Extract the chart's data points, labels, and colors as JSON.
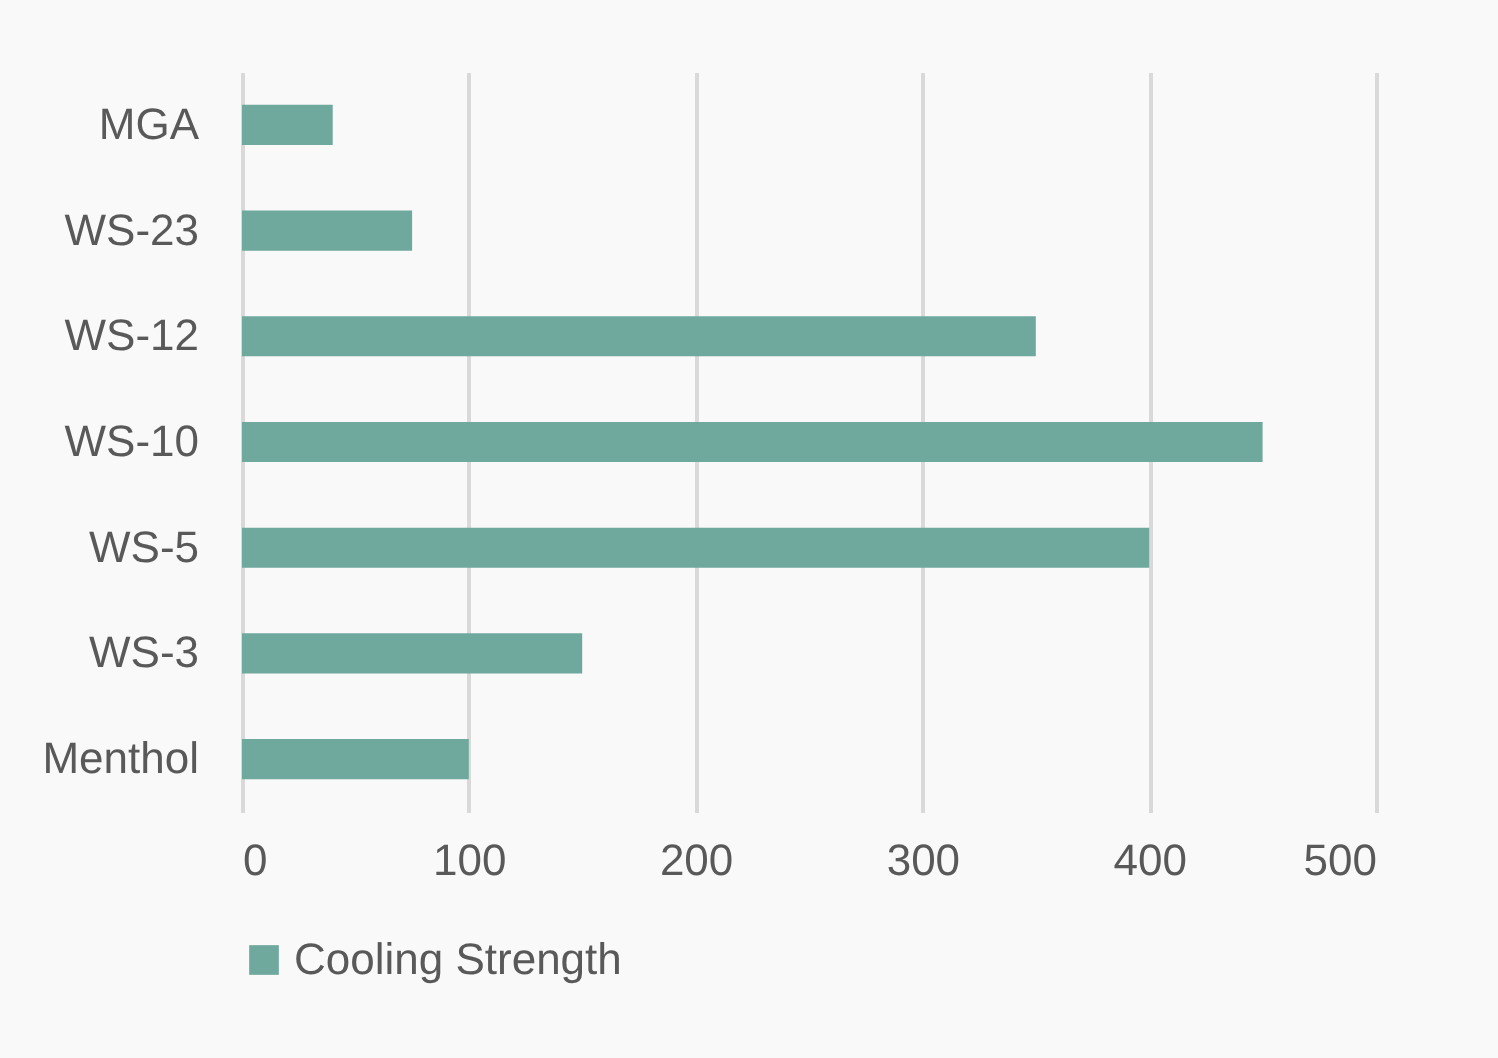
{
  "chart_data": {
    "type": "bar",
    "orientation": "horizontal",
    "categories": [
      "MGA",
      "WS-23",
      "WS-12",
      "WS-10",
      "WS-5",
      "WS-3",
      "Menthol"
    ],
    "series": [
      {
        "name": "Cooling Strength",
        "color": "#6fa89c",
        "values": [
          40,
          75,
          350,
          450,
          400,
          150,
          100
        ]
      }
    ],
    "xlim": [
      0,
      500
    ],
    "xticks": [
      0,
      100,
      200,
      300,
      400,
      500
    ],
    "grid": "x",
    "legend": "bottom"
  }
}
